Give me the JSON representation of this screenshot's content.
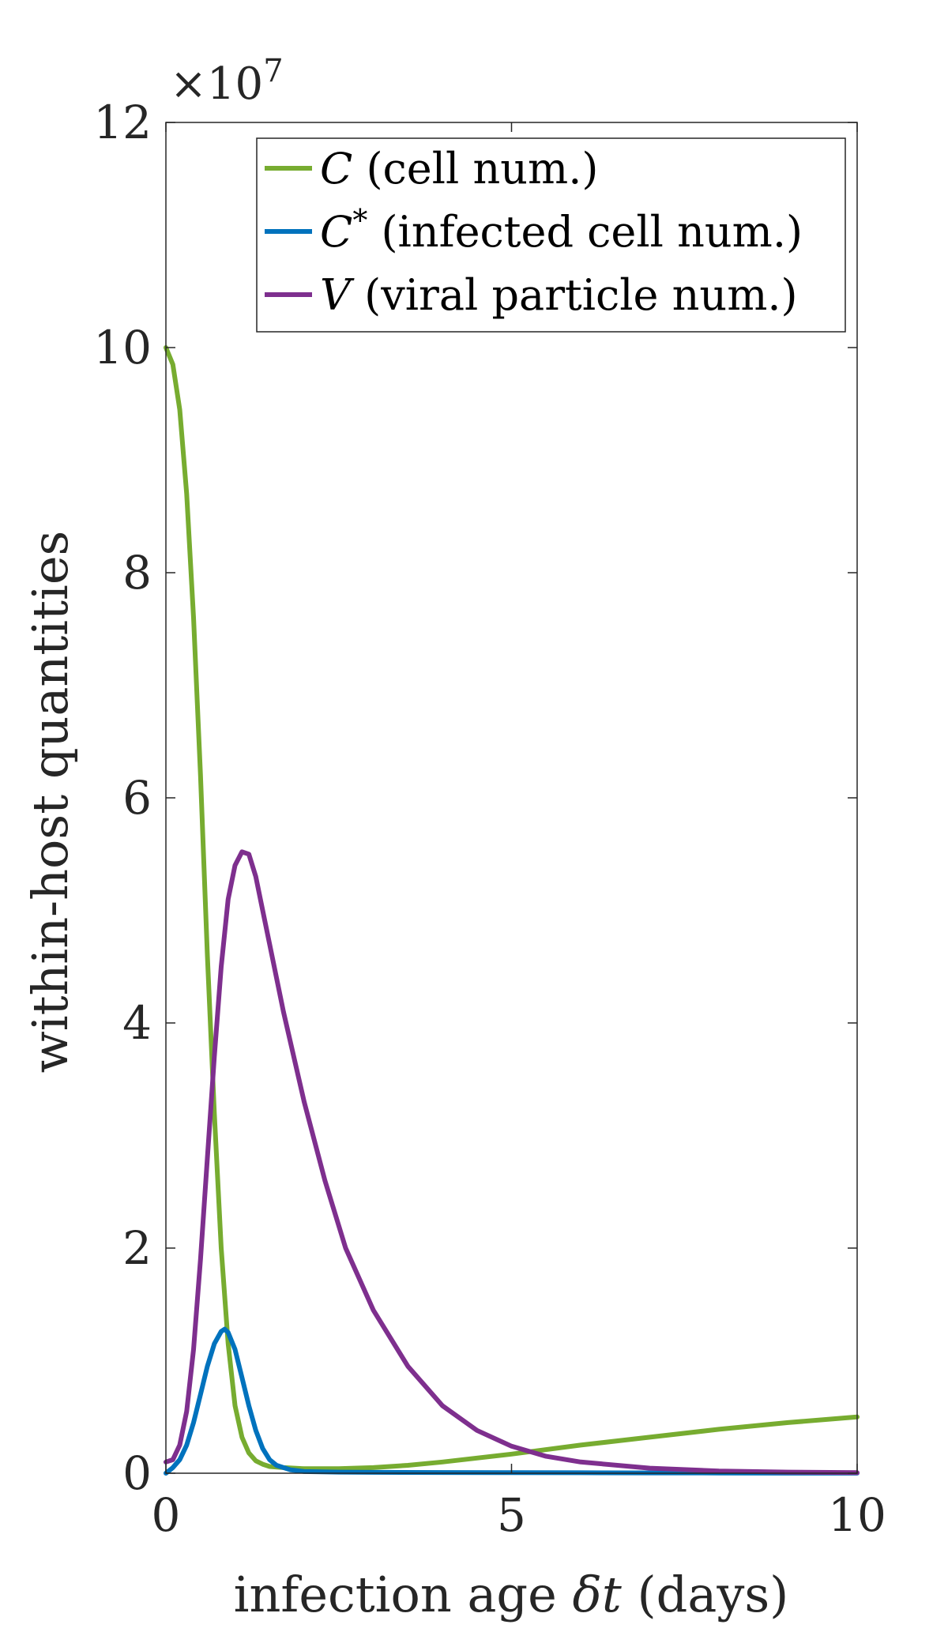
{
  "chart_data": {
    "type": "line",
    "xlabel": "infection age δt (days)",
    "xlabel_parts": {
      "pre": "infection age ",
      "var": "δt",
      "post": " (days)"
    },
    "ylabel": "within-host quantities",
    "y_multiplier": "×10",
    "y_multiplier_exp": "7",
    "xlim": [
      0,
      10
    ],
    "ylim": [
      0,
      12
    ],
    "xticks": [
      0,
      5,
      10
    ],
    "xtick_labels": [
      "0",
      "5",
      "10"
    ],
    "yticks": [
      0,
      2,
      4,
      6,
      8,
      10,
      12
    ],
    "ytick_labels": [
      "0",
      "2",
      "4",
      "6",
      "8",
      "10",
      "12"
    ],
    "grid": false,
    "legend_position": "top-right",
    "series": [
      {
        "name": "C (cell num.)",
        "label_var": "C",
        "label_sup": "",
        "label_text": " (cell num.)",
        "color": "#77ac30",
        "x": [
          0,
          0.1,
          0.2,
          0.3,
          0.4,
          0.5,
          0.6,
          0.7,
          0.8,
          0.9,
          1.0,
          1.1,
          1.2,
          1.3,
          1.4,
          1.5,
          1.7,
          2.0,
          2.5,
          3.0,
          3.5,
          4.0,
          5.0,
          6.0,
          7.0,
          8.0,
          9.0,
          10.0
        ],
        "values": [
          10.0,
          9.85,
          9.45,
          8.7,
          7.6,
          6.2,
          4.6,
          3.2,
          2.0,
          1.15,
          0.6,
          0.32,
          0.18,
          0.11,
          0.08,
          0.06,
          0.05,
          0.04,
          0.04,
          0.05,
          0.07,
          0.1,
          0.17,
          0.25,
          0.32,
          0.39,
          0.45,
          0.5
        ]
      },
      {
        "name": "C* (infected cell num.)",
        "label_var": "C",
        "label_sup": "*",
        "label_text": " (infected cell num.)",
        "color": "#0072bd",
        "x": [
          0,
          0.1,
          0.2,
          0.3,
          0.4,
          0.5,
          0.6,
          0.7,
          0.8,
          0.85,
          0.9,
          1.0,
          1.1,
          1.2,
          1.3,
          1.4,
          1.5,
          1.6,
          1.8,
          2.0,
          2.5,
          3.0,
          4.0,
          5.0,
          6.0,
          7.0,
          8.0,
          9.0,
          10.0
        ],
        "values": [
          0,
          0.05,
          0.12,
          0.25,
          0.45,
          0.7,
          0.95,
          1.15,
          1.26,
          1.28,
          1.25,
          1.1,
          0.85,
          0.6,
          0.38,
          0.22,
          0.12,
          0.07,
          0.03,
          0.015,
          0.01,
          0.008,
          0.006,
          0.005,
          0.004,
          0.003,
          0.002,
          0.001,
          0.001
        ]
      },
      {
        "name": "V (viral particle num.)",
        "label_var": "V",
        "label_sup": "",
        "label_text": " (viral particle num.)",
        "color": "#7e2f8e",
        "x": [
          0,
          0.1,
          0.2,
          0.3,
          0.4,
          0.5,
          0.6,
          0.7,
          0.8,
          0.9,
          1.0,
          1.1,
          1.2,
          1.3,
          1.4,
          1.5,
          1.7,
          2.0,
          2.3,
          2.6,
          3.0,
          3.5,
          4.0,
          4.5,
          5.0,
          5.5,
          6.0,
          7.0,
          8.0,
          9.0,
          10.0
        ],
        "values": [
          0.1,
          0.12,
          0.25,
          0.55,
          1.1,
          1.9,
          2.8,
          3.7,
          4.5,
          5.1,
          5.4,
          5.52,
          5.5,
          5.3,
          5.0,
          4.7,
          4.1,
          3.3,
          2.6,
          2.0,
          1.45,
          0.95,
          0.6,
          0.38,
          0.24,
          0.15,
          0.1,
          0.045,
          0.02,
          0.01,
          0.005
        ]
      }
    ]
  }
}
